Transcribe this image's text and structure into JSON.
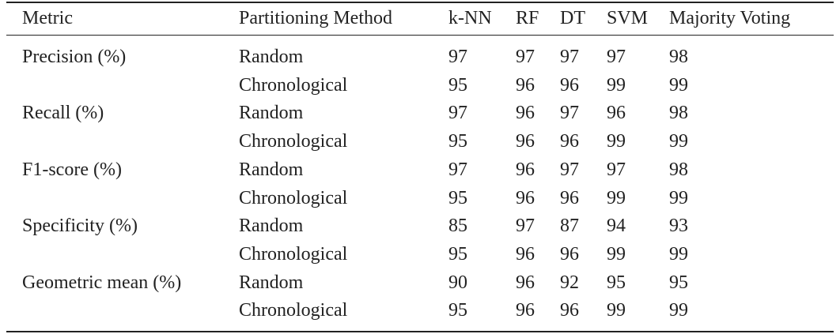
{
  "table": {
    "header": [
      "Metric",
      "Partitioning Method",
      "k-NN",
      "RF",
      "DT",
      "SVM",
      "Majority Voting"
    ],
    "groups": [
      {
        "metric": "Precision (%)",
        "rows": [
          {
            "method": "Random",
            "values": [
              97,
              97,
              97,
              97,
              98
            ]
          },
          {
            "method": "Chronological",
            "values": [
              95,
              96,
              96,
              99,
              99
            ]
          }
        ]
      },
      {
        "metric": "Recall (%)",
        "rows": [
          {
            "method": "Random",
            "values": [
              97,
              96,
              97,
              96,
              98
            ]
          },
          {
            "method": "Chronological",
            "values": [
              95,
              96,
              96,
              99,
              99
            ]
          }
        ]
      },
      {
        "metric": "F1-score (%)",
        "rows": [
          {
            "method": "Random",
            "values": [
              97,
              96,
              97,
              97,
              98
            ]
          },
          {
            "method": "Chronological",
            "values": [
              95,
              96,
              96,
              99,
              99
            ]
          }
        ]
      },
      {
        "metric": "Specificity (%)",
        "rows": [
          {
            "method": "Random",
            "values": [
              85,
              97,
              87,
              94,
              93
            ]
          },
          {
            "method": "Chronological",
            "values": [
              95,
              96,
              96,
              99,
              99
            ]
          }
        ]
      },
      {
        "metric": "Geometric mean (%)",
        "rows": [
          {
            "method": "Random",
            "values": [
              90,
              96,
              92,
              95,
              95
            ]
          },
          {
            "method": "Chronological",
            "values": [
              95,
              96,
              96,
              99,
              99
            ]
          }
        ]
      }
    ]
  }
}
